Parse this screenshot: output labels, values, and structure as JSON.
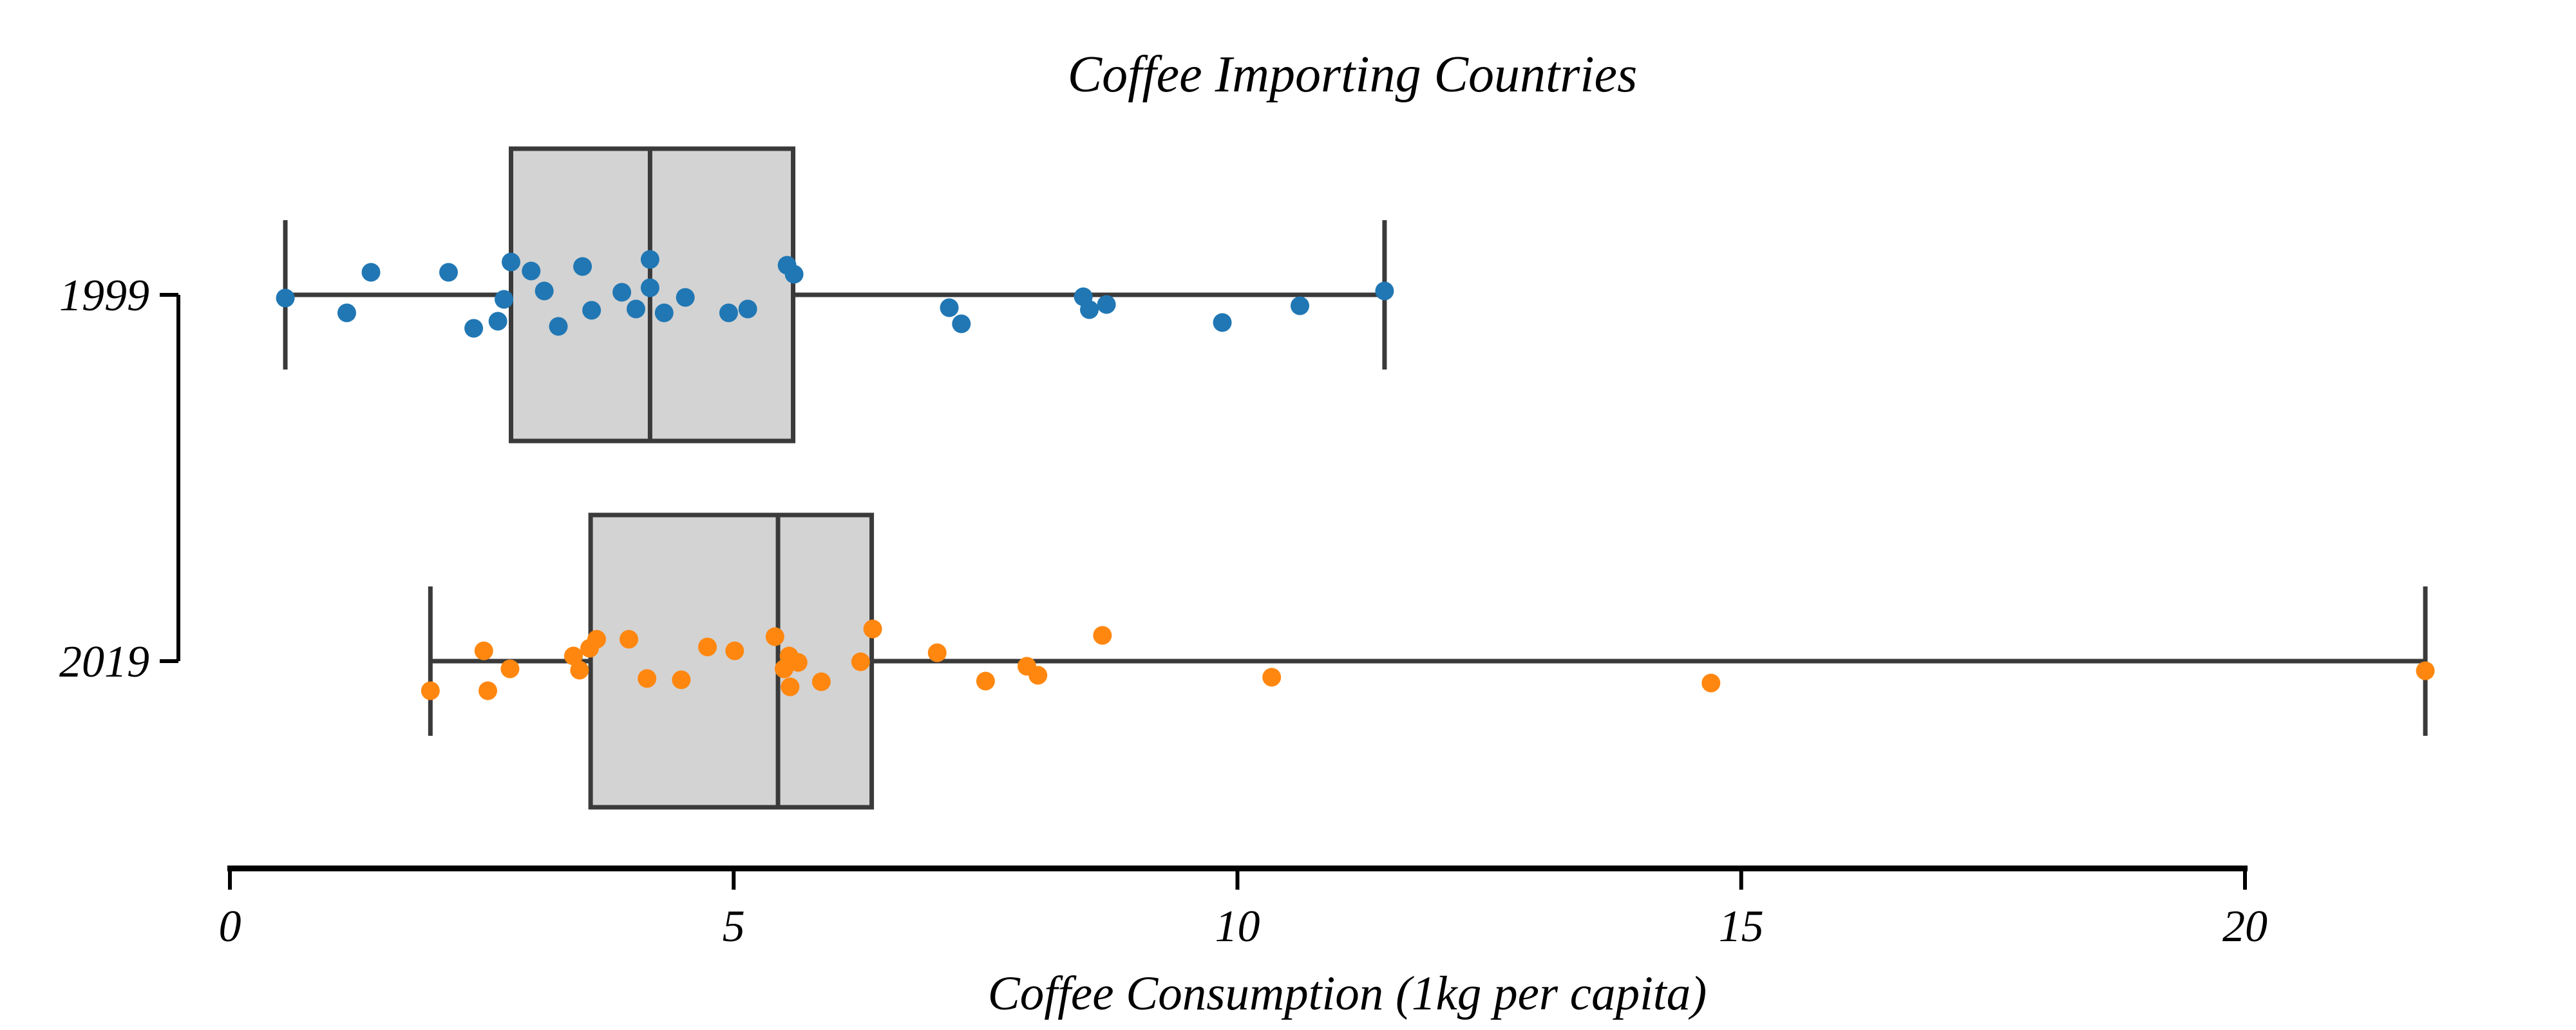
{
  "chart_data": {
    "type": "box",
    "subtype": "box-with-strip-points",
    "orientation": "horizontal",
    "title": "Coffee Importing Countries",
    "xlabel": "Coffee Consumption (1kg per capita)",
    "ylabel": "",
    "categories": [
      "1999",
      "2019"
    ],
    "xticks": [
      0,
      5,
      10,
      15,
      20
    ],
    "xtick_labels": [
      "0",
      "5",
      "10",
      "15",
      "20"
    ],
    "xlim": [
      -0.6,
      22.6
    ],
    "grid": false,
    "legend": null,
    "colors": {
      "box_fill": "#d3d3d3",
      "box_line": "#3a3a3a",
      "axis_line": "#000000",
      "series_1999": "#2077b4",
      "series_2019": "#ff870f"
    },
    "series": [
      {
        "name": "1999",
        "color": "#2077b4",
        "box": {
          "whisker_low": 0.55,
          "q1": 2.79,
          "median": 4.17,
          "q3": 5.59,
          "whisker_high": 11.46
        },
        "points": [
          [
            0.55,
            5
          ],
          [
            1.16,
            28
          ],
          [
            1.4,
            -35
          ],
          [
            2.17,
            -35
          ],
          [
            2.42,
            52
          ],
          [
            2.66,
            41
          ],
          [
            2.72,
            7
          ],
          [
            2.79,
            -51
          ],
          [
            2.99,
            -37
          ],
          [
            3.12,
            -6
          ],
          [
            3.26,
            49
          ],
          [
            3.5,
            -44
          ],
          [
            3.59,
            24
          ],
          [
            3.89,
            -4
          ],
          [
            4.03,
            22
          ],
          [
            4.17,
            -55
          ],
          [
            4.17,
            -11
          ],
          [
            4.31,
            28
          ],
          [
            4.52,
            4
          ],
          [
            4.95,
            28
          ],
          [
            5.14,
            22
          ],
          [
            5.53,
            -46
          ],
          [
            5.6,
            -32
          ],
          [
            7.14,
            20
          ],
          [
            7.26,
            45
          ],
          [
            8.47,
            3
          ],
          [
            8.53,
            23
          ],
          [
            8.7,
            15
          ],
          [
            9.85,
            43
          ],
          [
            10.62,
            17
          ],
          [
            11.46,
            -6
          ]
        ]
      },
      {
        "name": "2019",
        "color": "#ff870f",
        "box": {
          "whisker_low": 1.99,
          "q1": 3.58,
          "median": 5.44,
          "q3": 6.37,
          "whisker_high": 21.79
        },
        "points": [
          [
            1.99,
            46
          ],
          [
            2.52,
            -16
          ],
          [
            2.56,
            46
          ],
          [
            2.78,
            12
          ],
          [
            3.41,
            -8
          ],
          [
            3.47,
            14
          ],
          [
            3.57,
            -20
          ],
          [
            3.64,
            -34
          ],
          [
            3.96,
            -34
          ],
          [
            4.14,
            27
          ],
          [
            4.48,
            29
          ],
          [
            4.74,
            -22
          ],
          [
            5.01,
            -16
          ],
          [
            5.41,
            -38
          ],
          [
            5.5,
            12
          ],
          [
            5.55,
            -8
          ],
          [
            5.64,
            2
          ],
          [
            5.56,
            40
          ],
          [
            5.87,
            32
          ],
          [
            6.26,
            1
          ],
          [
            6.38,
            -50
          ],
          [
            7.02,
            -13
          ],
          [
            7.5,
            31
          ],
          [
            7.91,
            8
          ],
          [
            8.02,
            22
          ],
          [
            8.66,
            -40
          ],
          [
            10.34,
            25
          ],
          [
            14.7,
            34
          ],
          [
            21.79,
            15
          ]
        ]
      }
    ]
  }
}
